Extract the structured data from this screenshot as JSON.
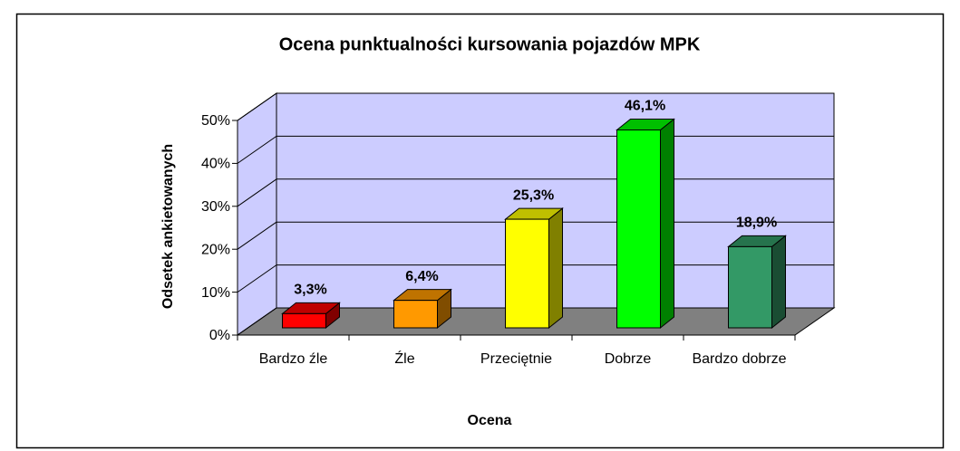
{
  "chart_data": {
    "type": "bar",
    "title": "Ocena punktualności kursowania pojazdów MPK",
    "x_label": "Ocena",
    "y_label": "Odsetek ankietowanych",
    "categories": [
      "Bardzo źle",
      "Źle",
      "Przeciętnie",
      "Dobrze",
      "Bardzo dobrze"
    ],
    "values": [
      3.3,
      6.4,
      25.3,
      46.1,
      18.9
    ],
    "value_labels": [
      "3,3%",
      "6,4%",
      "25,3%",
      "46,1%",
      "18,9%"
    ],
    "colors": [
      "#ff0000",
      "#ff9900",
      "#ffff00",
      "#00ff00",
      "#339966"
    ],
    "ylim": [
      0,
      50
    ],
    "yticks": [
      {
        "value": 0,
        "label": "0%"
      },
      {
        "value": 10,
        "label": "10%"
      },
      {
        "value": 20,
        "label": "20%"
      },
      {
        "value": 30,
        "label": "30%"
      },
      {
        "value": 40,
        "label": "40%"
      },
      {
        "value": 50,
        "label": "50%"
      }
    ],
    "grid": true
  }
}
